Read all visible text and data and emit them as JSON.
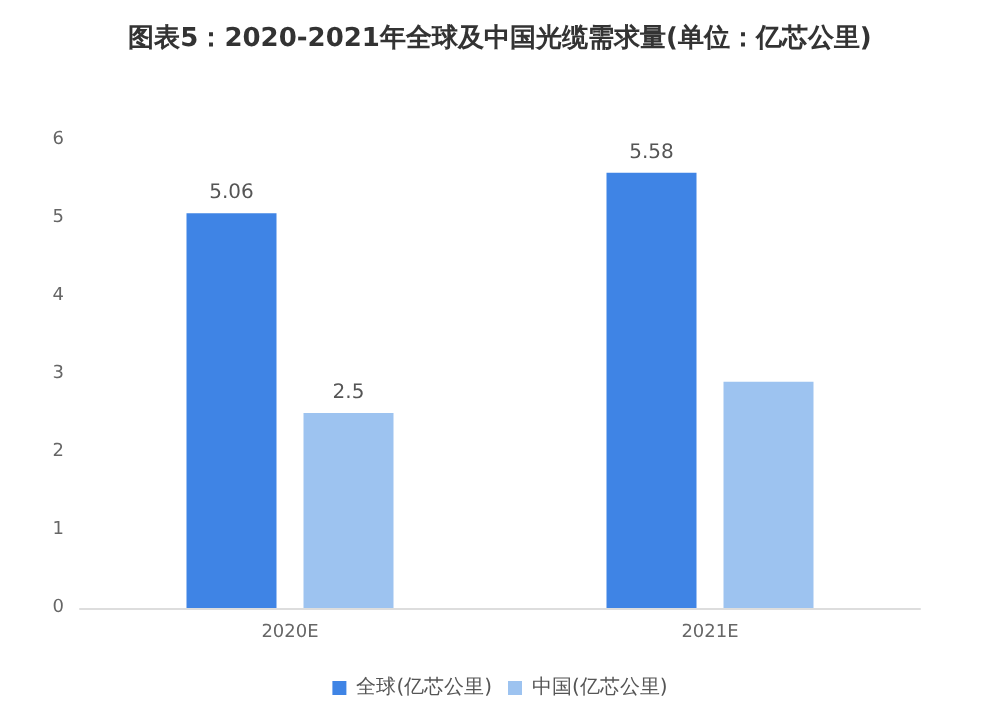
{
  "chart_data": {
    "type": "bar",
    "title": "图表5：2020-2021年全球及中国光缆需求量(单位：亿芯公里)",
    "categories": [
      "2020E",
      "2021E"
    ],
    "series": [
      {
        "name": "全球(亿芯公里)",
        "color": "#3f84e5",
        "values": [
          5.06,
          5.58
        ],
        "value_labels": [
          "5.06",
          "5.58"
        ]
      },
      {
        "name": "中国(亿芯公里)",
        "color": "#9dc3f0",
        "values": [
          2.5,
          2.9
        ],
        "value_labels": [
          "2.5",
          null
        ]
      }
    ],
    "ylim": [
      0,
      6
    ],
    "yticks": [
      0,
      1,
      2,
      3,
      4,
      5,
      6
    ],
    "grid": false,
    "legend": "bottom"
  }
}
